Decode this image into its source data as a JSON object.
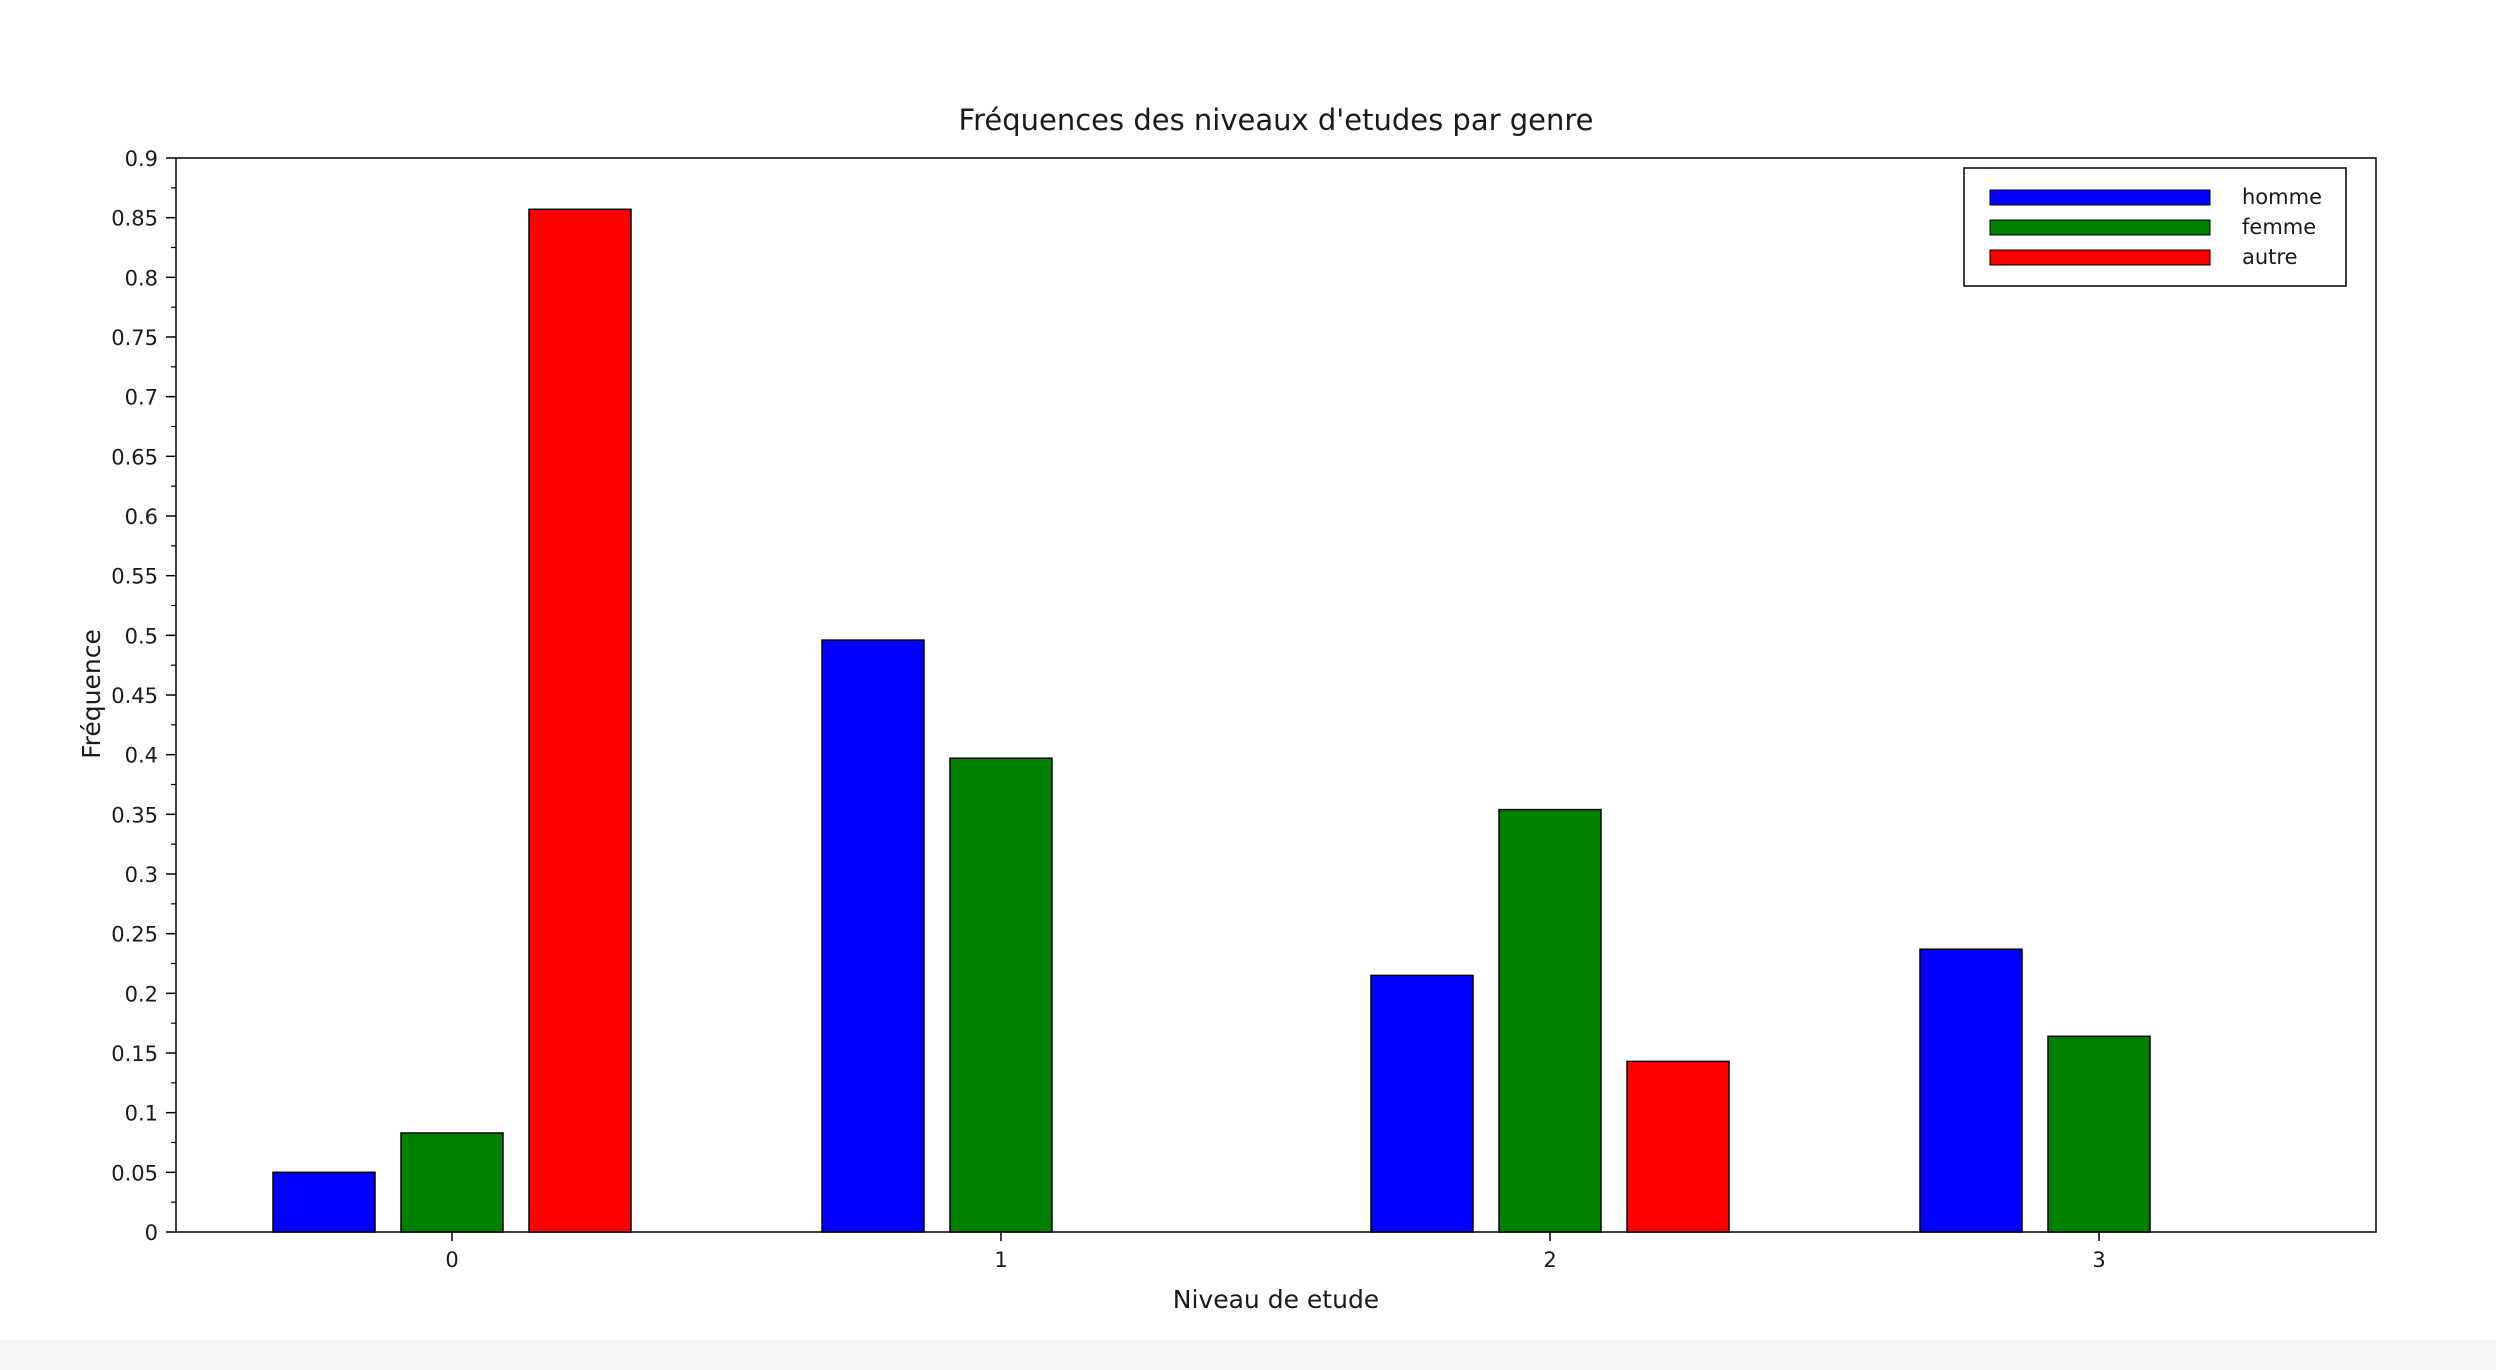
{
  "chart_data": {
    "type": "bar",
    "title": "Fréquences des niveaux d'etudes par genre",
    "xlabel": "Niveau de etude",
    "ylabel": "Fréquence",
    "categories": [
      "0",
      "1",
      "2",
      "3"
    ],
    "series": [
      {
        "name": "homme",
        "color": "#0000ff",
        "values": [
          0.05,
          0.496,
          0.215,
          0.237
        ]
      },
      {
        "name": "femme",
        "color": "#008000",
        "values": [
          0.083,
          0.397,
          0.354,
          0.164
        ]
      },
      {
        "name": "autre",
        "color": "#ff0000",
        "values": [
          0.857,
          0,
          0.143,
          0
        ]
      }
    ],
    "ylim": [
      0,
      0.9
    ],
    "yticks": [
      "0",
      "0.05",
      "0.1",
      "0.15",
      "0.2",
      "0.25",
      "0.3",
      "0.35",
      "0.4",
      "0.45",
      "0.5",
      "0.55",
      "0.6",
      "0.65",
      "0.7",
      "0.75",
      "0.8",
      "0.85",
      "0.9"
    ],
    "grid": false,
    "legend_position": "top-right"
  }
}
